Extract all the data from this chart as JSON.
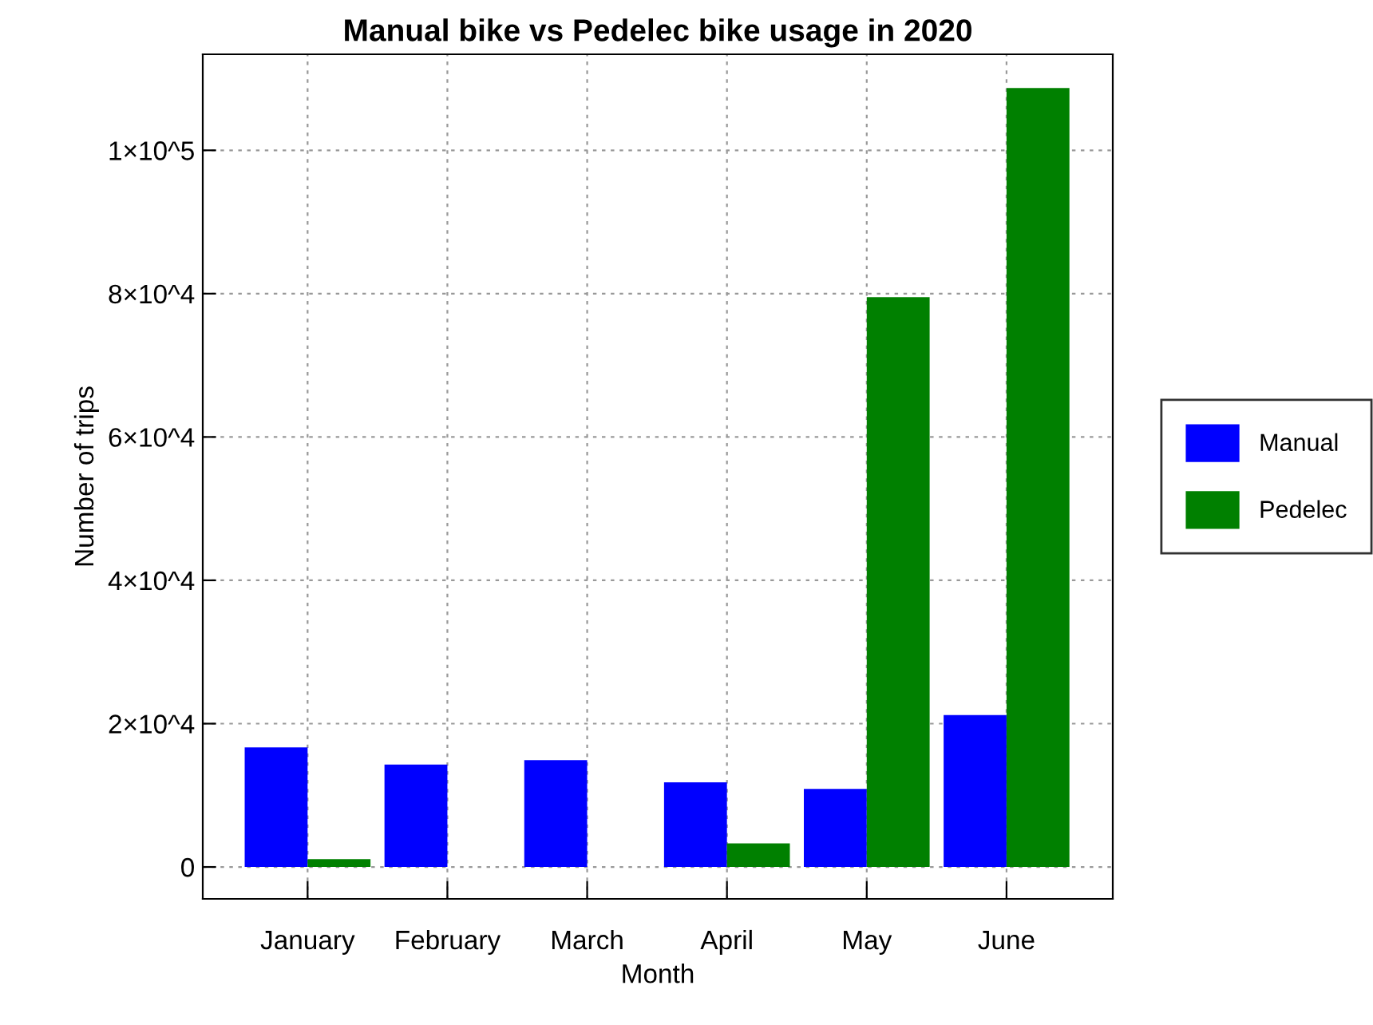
{
  "chart_data": {
    "type": "bar",
    "title": "Manual bike vs Pedelec bike usage in 2020",
    "xlabel": "Month",
    "ylabel": "Number of trips",
    "categories": [
      "January",
      "February",
      "March",
      "April",
      "May",
      "June"
    ],
    "series": [
      {
        "name": "Manual",
        "color": "#0000ff",
        "values": [
          16700,
          14300,
          14900,
          11800,
          10900,
          21200
        ]
      },
      {
        "name": "Pedelec",
        "color": "#008000",
        "values": [
          1100,
          0,
          0,
          3300,
          79500,
          108700
        ]
      }
    ],
    "ylim": [
      -4450,
      113400
    ],
    "yticks": [
      0,
      {
        "value": 20000,
        "label": "2×10^4"
      },
      {
        "value": 40000,
        "label": "4×10^4"
      },
      {
        "value": 60000,
        "label": "6×10^4"
      },
      {
        "value": 80000,
        "label": "8×10^4"
      },
      {
        "value": 100000,
        "label": "1×10^5"
      }
    ],
    "grid": true,
    "legend": "right"
  }
}
